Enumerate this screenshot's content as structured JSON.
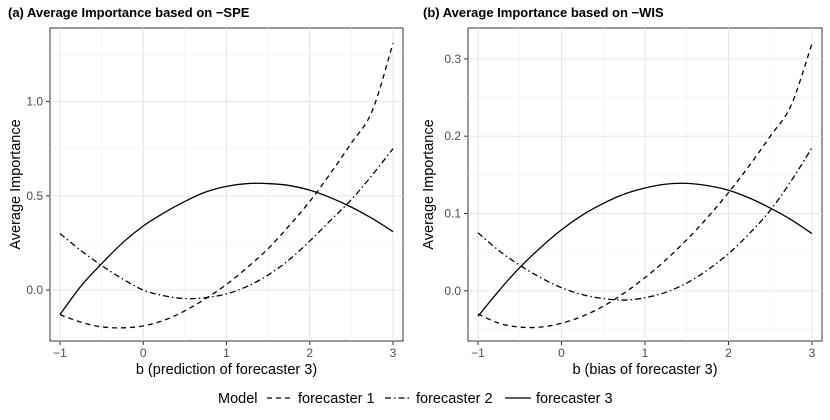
{
  "chart_data": [
    {
      "type": "line",
      "title": "(a) Average Importance based on −SPE",
      "xlabel": "b (prediction of forecaster 3)",
      "ylabel": "Average  Importance",
      "xlim": [
        -1.12,
        3.12
      ],
      "ylim": [
        -0.27,
        1.39
      ],
      "xticks": [
        -1,
        0,
        1,
        2,
        3
      ],
      "yticks": [
        0.0,
        0.5,
        1.0
      ],
      "ytick_labels": [
        "0.0",
        "0.5",
        "1.0"
      ],
      "grid": true,
      "series": [
        {
          "name": "forecaster 1",
          "dash": "dashed",
          "x": [
            -1,
            -0.75,
            -0.5,
            -0.25,
            0,
            0.25,
            0.5,
            0.75,
            1,
            1.25,
            1.5,
            1.75,
            2,
            2.25,
            2.5,
            2.75,
            3
          ],
          "y": [
            -0.13,
            -0.17,
            -0.195,
            -0.2,
            -0.19,
            -0.16,
            -0.11,
            -0.045,
            0.03,
            0.12,
            0.22,
            0.34,
            0.47,
            0.62,
            0.78,
            0.95,
            1.31
          ]
        },
        {
          "name": "forecaster 2",
          "dash": "dotdash",
          "x": [
            -1,
            -0.75,
            -0.5,
            -0.25,
            0,
            0.25,
            0.5,
            0.75,
            1,
            1.25,
            1.5,
            1.75,
            2,
            2.25,
            2.5,
            2.75,
            3
          ],
          "y": [
            0.3,
            0.21,
            0.13,
            0.06,
            0.0,
            -0.03,
            -0.045,
            -0.04,
            -0.02,
            0.02,
            0.08,
            0.16,
            0.26,
            0.37,
            0.48,
            0.61,
            0.75
          ]
        },
        {
          "name": "forecaster 3",
          "dash": "solid",
          "x": [
            -1,
            -0.75,
            -0.5,
            -0.25,
            0,
            0.25,
            0.5,
            0.75,
            1,
            1.25,
            1.5,
            1.75,
            2,
            2.25,
            2.5,
            2.75,
            3
          ],
          "y": [
            -0.13,
            0.02,
            0.14,
            0.25,
            0.34,
            0.41,
            0.47,
            0.52,
            0.55,
            0.565,
            0.565,
            0.555,
            0.53,
            0.49,
            0.44,
            0.38,
            0.31
          ]
        }
      ]
    },
    {
      "type": "line",
      "title": "(b) Average Importance based on −WIS",
      "xlabel": "b (bias of forecaster 3)",
      "ylabel": "Average  Importance",
      "xlim": [
        -1.12,
        3.12
      ],
      "ylim": [
        -0.065,
        0.34
      ],
      "xticks": [
        -1,
        0,
        1,
        2,
        3
      ],
      "yticks": [
        0.0,
        0.1,
        0.2,
        0.3
      ],
      "ytick_labels": [
        "0.0",
        "0.1",
        "0.2",
        "0.3"
      ],
      "grid": true,
      "series": [
        {
          "name": "forecaster 1",
          "dash": "dashed",
          "x": [
            -1,
            -0.75,
            -0.5,
            -0.25,
            0,
            0.25,
            0.5,
            0.75,
            1,
            1.25,
            1.5,
            1.75,
            2,
            2.25,
            2.5,
            2.75,
            3
          ],
          "y": [
            -0.03,
            -0.042,
            -0.047,
            -0.047,
            -0.042,
            -0.033,
            -0.02,
            -0.003,
            0.017,
            0.04,
            0.066,
            0.095,
            0.127,
            0.162,
            0.2,
            0.24,
            0.32
          ]
        },
        {
          "name": "forecaster 2",
          "dash": "dotdash",
          "x": [
            -1,
            -0.75,
            -0.5,
            -0.25,
            0,
            0.25,
            0.5,
            0.75,
            1,
            1.25,
            1.5,
            1.75,
            2,
            2.25,
            2.5,
            2.75,
            3
          ],
          "y": [
            0.075,
            0.052,
            0.033,
            0.017,
            0.004,
            -0.005,
            -0.01,
            -0.012,
            -0.009,
            -0.002,
            0.01,
            0.027,
            0.048,
            0.074,
            0.104,
            0.142,
            0.185
          ]
        },
        {
          "name": "forecaster 3",
          "dash": "solid",
          "x": [
            -1,
            -0.75,
            -0.5,
            -0.25,
            0,
            0.25,
            0.5,
            0.75,
            1,
            1.25,
            1.5,
            1.75,
            2,
            2.25,
            2.5,
            2.75,
            3
          ],
          "y": [
            -0.033,
            0.0,
            0.03,
            0.056,
            0.079,
            0.098,
            0.113,
            0.125,
            0.133,
            0.138,
            0.139,
            0.136,
            0.13,
            0.12,
            0.107,
            0.092,
            0.074
          ]
        }
      ]
    }
  ],
  "legend": {
    "title": "Model",
    "position": "bottom",
    "items": [
      "forecaster 1",
      "forecaster 2",
      "forecaster 3"
    ]
  }
}
